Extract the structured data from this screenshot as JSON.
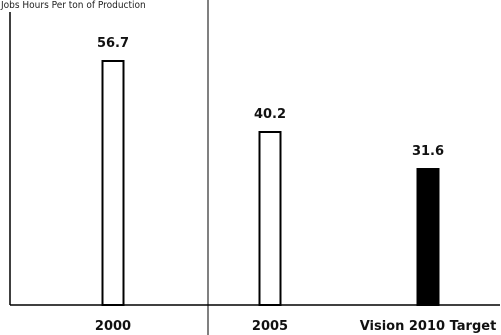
{
  "header_fragment": "Jobs Hours Per ton of Production",
  "chart_data": {
    "type": "bar",
    "categories": [
      "2000",
      "2005",
      "Vision 2010 Target"
    ],
    "values": [
      56.7,
      40.2,
      31.6
    ],
    "value_labels": [
      "56.7",
      "40.2",
      "31.6"
    ],
    "ylim": [
      0,
      65
    ],
    "grid": false,
    "bar_fills": [
      "#ffffff",
      "#ffffff",
      "#000000"
    ],
    "bar_stroke": "#000000"
  }
}
